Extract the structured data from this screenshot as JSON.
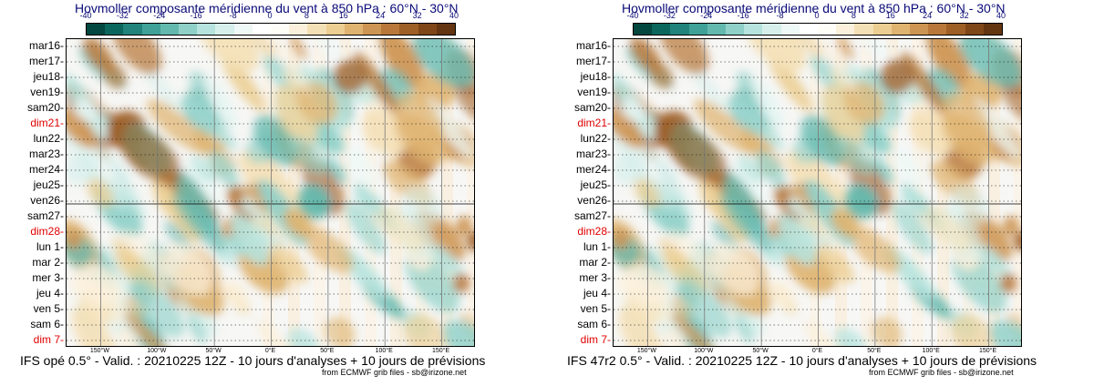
{
  "chart_data": [
    {
      "type": "heatmap",
      "title": "Hovmoller composante méridienne du vent à 850 hPa : 60°N - 30°N",
      "footer": "IFS opé 0.5° - Valid. : 20210225 12Z - 10 jours d'analyses + 10 jours de prévisions",
      "credit": "from ECMWF grib files - sb@irizone.net",
      "colorbar_ticks": [
        "-40",
        "-32",
        "-24",
        "-16",
        "-8",
        "0",
        "8",
        "16",
        "24",
        "32",
        "40"
      ],
      "colorbar_colors": [
        "#03473f",
        "#0b665d",
        "#21837b",
        "#3fa197",
        "#64b9af",
        "#8fd0c8",
        "#b6e3dd",
        "#d6efeb",
        "#eef8f6",
        "#ffffff",
        "#fffdf8",
        "#fbf0dc",
        "#f4e0b6",
        "#ecce92",
        "#dfb471",
        "#cd9553",
        "#b8783a",
        "#9e5f27",
        "#7f4618",
        "#633511"
      ],
      "y_labels": [
        "mar16",
        "mer17",
        "jeu18",
        "ven19",
        "sam20",
        "dim21",
        "lun22",
        "mar23",
        "mer24",
        "jeu25",
        "ven26",
        "sam27",
        "dim28",
        "lun 1",
        "mar 2",
        "mer 3",
        "jeu 4",
        "ven 5",
        "sam 6",
        "dim 7"
      ],
      "sunday_labels": [
        "dim21",
        "dim28",
        "dim 7"
      ],
      "x_ticks": [
        "150°W",
        "100°W",
        "50°W",
        "0°E",
        "50°E",
        "100°E",
        "150°E"
      ],
      "x_tick_values": [
        -150,
        -100,
        -50,
        0,
        50,
        100,
        150
      ],
      "xlim": [
        -180,
        180
      ],
      "analysis_forecast_split": "ven26",
      "colors": {
        "positive": "#d9a860",
        "negative": "#7fcfc2",
        "sunday": "#e00000",
        "title": "#0a0a78"
      }
    },
    {
      "type": "heatmap",
      "title": "Hovmoller composante méridienne du vent à 850 hPa : 60°N - 30°N",
      "footer": "IFS 47r2 0.5° - Valid. : 20210225 12Z - 10 jours d'analyses + 10 jours de prévisions",
      "credit": "from ECMWF grib files - sb@irizone.net",
      "colorbar_ticks": [
        "-40",
        "-32",
        "-24",
        "-16",
        "-8",
        "0",
        "8",
        "16",
        "24",
        "32",
        "40"
      ],
      "colorbar_colors": [
        "#03473f",
        "#0b665d",
        "#21837b",
        "#3fa197",
        "#64b9af",
        "#8fd0c8",
        "#b6e3dd",
        "#d6efeb",
        "#eef8f6",
        "#ffffff",
        "#fffdf8",
        "#fbf0dc",
        "#f4e0b6",
        "#ecce92",
        "#dfb471",
        "#cd9553",
        "#b8783a",
        "#9e5f27",
        "#7f4618",
        "#633511"
      ],
      "y_labels": [
        "mar16",
        "mer17",
        "jeu18",
        "ven19",
        "sam20",
        "dim21",
        "lun22",
        "mar23",
        "mer24",
        "jeu25",
        "ven26",
        "sam27",
        "dim28",
        "lun 1",
        "mar 2",
        "mer 3",
        "jeu 4",
        "ven 5",
        "sam 6",
        "dim 7"
      ],
      "sunday_labels": [
        "dim21",
        "dim28",
        "dim 7"
      ],
      "x_ticks": [
        "150°W",
        "100°W",
        "50°W",
        "0°E",
        "50°E",
        "100°E",
        "150°E"
      ],
      "x_tick_values": [
        -150,
        -100,
        -50,
        0,
        50,
        100,
        150
      ],
      "xlim": [
        -180,
        180
      ],
      "analysis_forecast_split": "ven26",
      "colors": {
        "positive": "#d9a860",
        "negative": "#7fcfc2",
        "sunday": "#e00000",
        "title": "#0a0a78"
      }
    }
  ]
}
